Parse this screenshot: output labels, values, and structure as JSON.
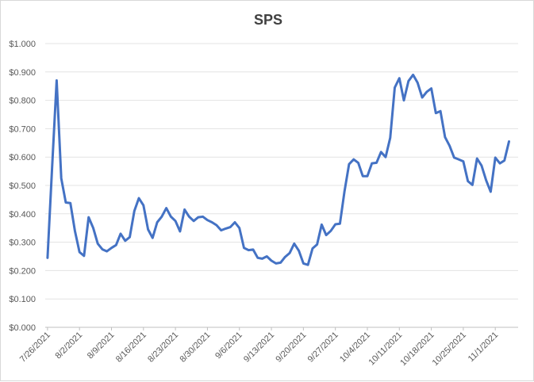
{
  "chart_data": {
    "type": "line",
    "title": "SPS",
    "xlabel": "",
    "ylabel": "",
    "ylim": [
      0,
      1.0
    ],
    "y_ticks": [
      "$0.000",
      "$0.100",
      "$0.200",
      "$0.300",
      "$0.400",
      "$0.500",
      "$0.600",
      "$0.700",
      "$0.800",
      "$0.900",
      "$1.000"
    ],
    "x_ticks": [
      "7/26/2021",
      "8/2/2021",
      "8/9/2021",
      "8/16/2021",
      "8/23/2021",
      "8/30/2021",
      "9/6/2021",
      "9/13/2021",
      "9/20/2021",
      "9/27/2021",
      "10/4/2021",
      "10/11/2021",
      "10/18/2021",
      "10/25/2021",
      "11/1/2021"
    ],
    "x_range": [
      "7/26/2021",
      "11/6/2021"
    ],
    "grid": true,
    "legend": "none",
    "series_color": "#4472c4",
    "series": [
      {
        "values": [
          [
            "7/26/2021",
            0.245
          ],
          [
            "7/27/2021",
            0.56
          ],
          [
            "7/28/2021",
            0.87
          ],
          [
            "7/29/2021",
            0.525
          ],
          [
            "7/30/2021",
            0.44
          ],
          [
            "7/31/2021",
            0.438
          ],
          [
            "8/1/2021",
            0.34
          ],
          [
            "8/2/2021",
            0.265
          ],
          [
            "8/3/2021",
            0.252
          ],
          [
            "8/4/2021",
            0.388
          ],
          [
            "8/5/2021",
            0.35
          ],
          [
            "8/6/2021",
            0.295
          ],
          [
            "8/7/2021",
            0.275
          ],
          [
            "8/8/2021",
            0.268
          ],
          [
            "8/9/2021",
            0.28
          ],
          [
            "8/10/2021",
            0.29
          ],
          [
            "8/11/2021",
            0.33
          ],
          [
            "8/12/2021",
            0.305
          ],
          [
            "8/13/2021",
            0.318
          ],
          [
            "8/14/2021",
            0.41
          ],
          [
            "8/15/2021",
            0.455
          ],
          [
            "8/16/2021",
            0.43
          ],
          [
            "8/17/2021",
            0.345
          ],
          [
            "8/18/2021",
            0.315
          ],
          [
            "8/19/2021",
            0.37
          ],
          [
            "8/20/2021",
            0.39
          ],
          [
            "8/21/2021",
            0.42
          ],
          [
            "8/22/2021",
            0.39
          ],
          [
            "8/23/2021",
            0.375
          ],
          [
            "8/24/2021",
            0.338
          ],
          [
            "8/25/2021",
            0.415
          ],
          [
            "8/26/2021",
            0.39
          ],
          [
            "8/27/2021",
            0.375
          ],
          [
            "8/28/2021",
            0.388
          ],
          [
            "8/29/2021",
            0.39
          ],
          [
            "8/30/2021",
            0.378
          ],
          [
            "8/31/2021",
            0.37
          ],
          [
            "9/1/2021",
            0.36
          ],
          [
            "9/2/2021",
            0.342
          ],
          [
            "9/3/2021",
            0.348
          ],
          [
            "9/4/2021",
            0.353
          ],
          [
            "9/5/2021",
            0.37
          ],
          [
            "9/6/2021",
            0.35
          ],
          [
            "9/7/2021",
            0.28
          ],
          [
            "9/8/2021",
            0.272
          ],
          [
            "9/9/2021",
            0.274
          ],
          [
            "9/10/2021",
            0.245
          ],
          [
            "9/11/2021",
            0.242
          ],
          [
            "9/12/2021",
            0.25
          ],
          [
            "9/13/2021",
            0.235
          ],
          [
            "9/14/2021",
            0.225
          ],
          [
            "9/15/2021",
            0.228
          ],
          [
            "9/16/2021",
            0.248
          ],
          [
            "9/17/2021",
            0.262
          ],
          [
            "9/18/2021",
            0.295
          ],
          [
            "9/19/2021",
            0.27
          ],
          [
            "9/20/2021",
            0.225
          ],
          [
            "9/21/2021",
            0.22
          ],
          [
            "9/22/2021",
            0.278
          ],
          [
            "9/23/2021",
            0.292
          ],
          [
            "9/24/2021",
            0.362
          ],
          [
            "9/25/2021",
            0.325
          ],
          [
            "9/26/2021",
            0.34
          ],
          [
            "9/27/2021",
            0.363
          ],
          [
            "9/28/2021",
            0.365
          ],
          [
            "9/29/2021",
            0.48
          ],
          [
            "9/30/2021",
            0.575
          ],
          [
            "10/1/2021",
            0.592
          ],
          [
            "10/2/2021",
            0.58
          ],
          [
            "10/3/2021",
            0.533
          ],
          [
            "10/4/2021",
            0.533
          ],
          [
            "10/5/2021",
            0.578
          ],
          [
            "10/6/2021",
            0.58
          ],
          [
            "10/7/2021",
            0.618
          ],
          [
            "10/8/2021",
            0.6
          ],
          [
            "10/9/2021",
            0.668
          ],
          [
            "10/10/2021",
            0.845
          ],
          [
            "10/11/2021",
            0.878
          ],
          [
            "10/12/2021",
            0.8
          ],
          [
            "10/13/2021",
            0.868
          ],
          [
            "10/14/2021",
            0.89
          ],
          [
            "10/15/2021",
            0.862
          ],
          [
            "10/16/2021",
            0.81
          ],
          [
            "10/17/2021",
            0.83
          ],
          [
            "10/18/2021",
            0.842
          ],
          [
            "10/19/2021",
            0.755
          ],
          [
            "10/20/2021",
            0.762
          ],
          [
            "10/21/2021",
            0.67
          ],
          [
            "10/22/2021",
            0.64
          ],
          [
            "10/23/2021",
            0.598
          ],
          [
            "10/24/2021",
            0.592
          ],
          [
            "10/25/2021",
            0.585
          ],
          [
            "10/26/2021",
            0.515
          ],
          [
            "10/27/2021",
            0.502
          ],
          [
            "10/28/2021",
            0.595
          ],
          [
            "10/29/2021",
            0.57
          ],
          [
            "10/30/2021",
            0.518
          ],
          [
            "10/31/2021",
            0.478
          ],
          [
            "11/1/2021",
            0.598
          ],
          [
            "11/2/2021",
            0.578
          ],
          [
            "11/3/2021",
            0.588
          ],
          [
            "11/4/2021",
            0.655
          ]
        ]
      }
    ]
  }
}
